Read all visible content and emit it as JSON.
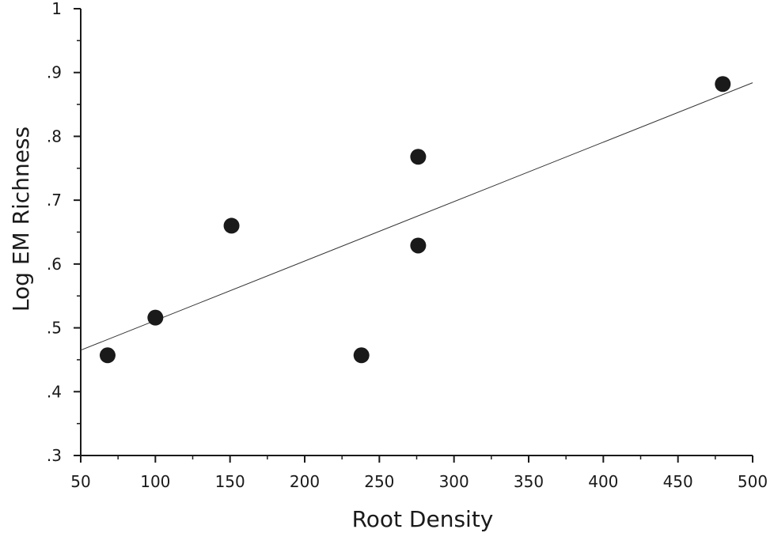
{
  "chart_data": {
    "type": "scatter",
    "title": "",
    "xlabel": "Root Density",
    "ylabel": "Log EM Richness",
    "xlim": [
      50,
      500
    ],
    "ylim": [
      0.3,
      1.0
    ],
    "x_ticks": [
      50,
      100,
      150,
      200,
      250,
      300,
      350,
      400,
      450,
      500
    ],
    "x_tick_labels": [
      "50",
      "100",
      "150",
      "200",
      "250",
      "300",
      "350",
      "400",
      "450",
      "500"
    ],
    "y_ticks": [
      0.3,
      0.4,
      0.5,
      0.6,
      0.7,
      0.8,
      0.9,
      1.0
    ],
    "y_tick_labels": [
      ".3",
      ".4",
      ".5",
      ".6",
      ".7",
      ".8",
      ".9",
      "1"
    ],
    "grid": false,
    "points": [
      {
        "x": 68,
        "y": 0.457
      },
      {
        "x": 100,
        "y": 0.516
      },
      {
        "x": 151,
        "y": 0.66
      },
      {
        "x": 238,
        "y": 0.457
      },
      {
        "x": 276,
        "y": 0.768
      },
      {
        "x": 276,
        "y": 0.629
      },
      {
        "x": 480,
        "y": 0.882
      }
    ],
    "fit_line": {
      "x": [
        50,
        500
      ],
      "y": [
        0.465,
        0.884
      ]
    },
    "marker_color": "#1a1a1a",
    "line_color": "#333333"
  }
}
